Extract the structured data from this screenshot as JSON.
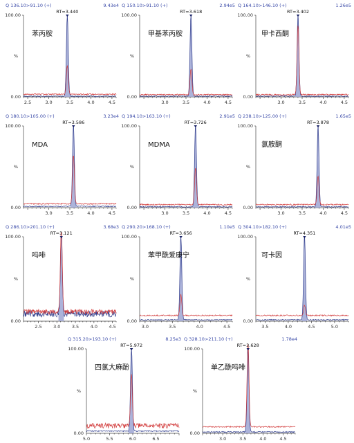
{
  "chart_data": [
    {
      "type": "line",
      "compound": "苯丙胺",
      "transition": "Q 136.10>91.10 (+)",
      "intensity": "9.43e4",
      "rt_label": "RT=3.440",
      "rt": 3.44,
      "xlim": [
        2.4,
        4.6
      ],
      "xticks": [
        "2.5",
        "3.0",
        "3.5",
        "4.0",
        "4.5"
      ],
      "ylim": [
        0,
        100
      ],
      "yticks": [
        "100.00",
        "%",
        "0.00"
      ],
      "qual_ratio": 35,
      "qual_baseline": 2.5,
      "baseline": 0.3
    },
    {
      "type": "line",
      "compound": "甲基苯丙胺",
      "transition": "Q 150.10>91.10 (+)",
      "intensity": "2.94e5",
      "rt_label": "RT=3.618",
      "rt": 3.618,
      "xlim": [
        2.4,
        4.6
      ],
      "xticks": [
        "3.0",
        "3.5",
        "4.0",
        "4.5"
      ],
      "ylim": [
        0,
        100
      ],
      "yticks": [
        "100.00",
        "%",
        "0.00"
      ],
      "qual_ratio": 32,
      "qual_baseline": 2,
      "baseline": 0.3
    },
    {
      "type": "line",
      "compound": "甲卡西酮",
      "transition": "Q 164.10>146.10 (+)",
      "intensity": "1.26e5",
      "rt_label": "RT=3.402",
      "rt": 3.402,
      "xlim": [
        2.4,
        4.6
      ],
      "xticks": [
        "3.0",
        "3.5",
        "4.0",
        "4.5"
      ],
      "ylim": [
        0,
        100
      ],
      "yticks": [
        "100.00",
        "%",
        "0.00"
      ],
      "qual_ratio": 85,
      "qual_baseline": 2,
      "baseline": 0.3
    },
    {
      "type": "line",
      "compound": "MDA",
      "transition": "Q 180.10>105.00 (+)",
      "intensity": "3.23e4",
      "rt_label": "RT=3.586",
      "rt": 3.586,
      "xlim": [
        2.4,
        4.6
      ],
      "xticks": [
        "3.0",
        "3.5",
        "4.0",
        "4.5"
      ],
      "ylim": [
        0,
        100
      ],
      "yticks": [
        "100.00",
        "%",
        "0.00"
      ],
      "qual_ratio": 60,
      "qual_baseline": 4,
      "baseline": 1
    },
    {
      "type": "line",
      "compound": "MDMA",
      "transition": "Q 194.10>163.10 (+)",
      "intensity": "2.91e5",
      "rt_label": "RT=3.726",
      "rt": 3.726,
      "xlim": [
        2.4,
        4.6
      ],
      "xticks": [
        "3.0",
        "3.5",
        "4.0",
        "4.5"
      ],
      "ylim": [
        0,
        100
      ],
      "yticks": [
        "100.00",
        "%",
        "0.00"
      ],
      "qual_ratio": 45,
      "qual_baseline": 3,
      "baseline": 0.5
    },
    {
      "type": "line",
      "compound": "氯胺酮",
      "transition": "Q 238.10>125.00 (+)",
      "intensity": "1.65e5",
      "rt_label": "RT=3.878",
      "rt": 3.878,
      "xlim": [
        2.4,
        4.6
      ],
      "xticks": [
        "3.0",
        "3.5",
        "4.0",
        "4.5"
      ],
      "ylim": [
        0,
        100
      ],
      "yticks": [
        "100.00",
        "%",
        "0.00"
      ],
      "qual_ratio": 35,
      "qual_baseline": 3,
      "baseline": 0.5
    },
    {
      "type": "line",
      "compound": "吗啡",
      "transition": "Q 286.10>201.10 (+)",
      "intensity": "3.68e3",
      "rt_label": "RT=3.121",
      "rt": 3.121,
      "xlim": [
        2.1,
        4.6
      ],
      "xticks": [
        "2.5",
        "3.0",
        "3.5",
        "4.0",
        "4.5"
      ],
      "ylim": [
        0,
        100
      ],
      "yticks": [
        "100.00",
        "%",
        "0.00"
      ],
      "qual_ratio": 105,
      "qual_baseline": 8,
      "baseline": 5
    },
    {
      "type": "line",
      "compound": "苯甲酰爱康宁",
      "transition": "Q 290.20>168.10 (+)",
      "intensity": "1.10e5",
      "rt_label": "RT=3.656",
      "rt": 3.656,
      "xlim": [
        2.9,
        4.6
      ],
      "xticks": [
        "3.0",
        "3.5",
        "4.0",
        "4.5"
      ],
      "ylim": [
        0,
        100
      ],
      "yticks": [
        "100.00",
        "%",
        "0.00"
      ],
      "qual_ratio": 25,
      "qual_baseline": 6,
      "baseline": 1
    },
    {
      "type": "line",
      "compound": "可卡因",
      "transition": "Q 304.10>182.10 (+)",
      "intensity": "4.01e5",
      "rt_label": "RT=4.351",
      "rt": 4.351,
      "xlim": [
        3.3,
        5.3
      ],
      "xticks": [
        "3.5",
        "4.0",
        "4.5",
        "5.0"
      ],
      "ylim": [
        0,
        100
      ],
      "yticks": [
        "100.00",
        "%",
        "0.00"
      ],
      "qual_ratio": 12,
      "qual_baseline": 6,
      "baseline": 1
    },
    {
      "type": "line",
      "compound": "四氯大麻酚",
      "transition": "Q 315.20>193.10 (+)",
      "intensity": "8.25e3",
      "rt_label": "RT=5.972",
      "rt": 5.972,
      "xlim": [
        5.0,
        7.0
      ],
      "xticks": [
        "5.0",
        "5.5",
        "6.0",
        "6.5"
      ],
      "ylim": [
        0,
        100
      ],
      "yticks": [
        "100.00",
        "%",
        "0.00"
      ],
      "qual_ratio": 60,
      "qual_baseline": 6,
      "baseline": 2
    },
    {
      "type": "line",
      "compound": "单乙酰吗啡",
      "transition": "Q 328.10>211.10 (+)",
      "intensity": "1.78e4",
      "rt_label": "RT=3.628",
      "rt": 3.628,
      "xlim": [
        2.5,
        4.8
      ],
      "xticks": [
        "3.0",
        "3.5",
        "4.0",
        "4.5"
      ],
      "ylim": [
        0,
        100
      ],
      "yticks": [
        "100.00",
        "%",
        "0.00"
      ],
      "qual_ratio": 105,
      "qual_baseline": 7,
      "baseline": 1
    }
  ],
  "colors": {
    "header": "#3a4aa8",
    "quant_fill": "#9ea6d4",
    "quant_line": "#2f3c8c",
    "qual_line": "#d23c3c",
    "axis": "#444444",
    "text": "#111111"
  }
}
